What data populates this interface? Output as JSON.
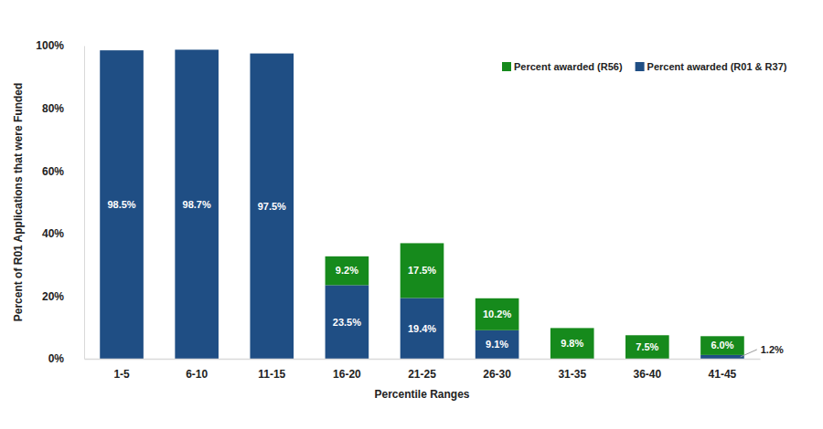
{
  "chart_data": {
    "type": "bar",
    "stacked": true,
    "data_labels": true,
    "legend": "upper right",
    "grid": false,
    "y_label": "Percent of R01 Applications that were Funded",
    "x_label": "Percentile Ranges",
    "categories": [
      "1-5",
      "6-10",
      "11-15",
      "16-20",
      "21-25",
      "26-30",
      "31-35",
      "36-40",
      "41-45"
    ],
    "ylim": [
      0,
      100
    ],
    "yticks": [
      {
        "value": 0,
        "label": "0%"
      },
      {
        "value": 20,
        "label": "20%"
      },
      {
        "value": 40,
        "label": "40%"
      },
      {
        "value": 60,
        "label": "60%"
      },
      {
        "value": 80,
        "label": "80%"
      },
      {
        "value": 100,
        "label": "100%"
      }
    ],
    "series": [
      {
        "name": "Percent awarded (R01 & R37)",
        "color": "#1f4e84",
        "values": [
          98.5,
          98.7,
          97.5,
          23.5,
          19.4,
          9.1,
          null,
          null,
          1.2
        ],
        "value_labels": [
          "98.5%",
          "98.7%",
          "97.5%",
          "23.5%",
          "19.4%",
          "9.1%",
          null,
          null,
          "1.2%"
        ]
      },
      {
        "name": "Percent awarded (R56)",
        "color": "#168a1c",
        "values": [
          null,
          null,
          null,
          9.2,
          17.5,
          10.2,
          9.8,
          7.5,
          6.0
        ],
        "value_labels": [
          null,
          null,
          null,
          "9.2%",
          "17.5%",
          "10.2%",
          "9.8%",
          "7.5%",
          "6.0%"
        ]
      }
    ]
  }
}
